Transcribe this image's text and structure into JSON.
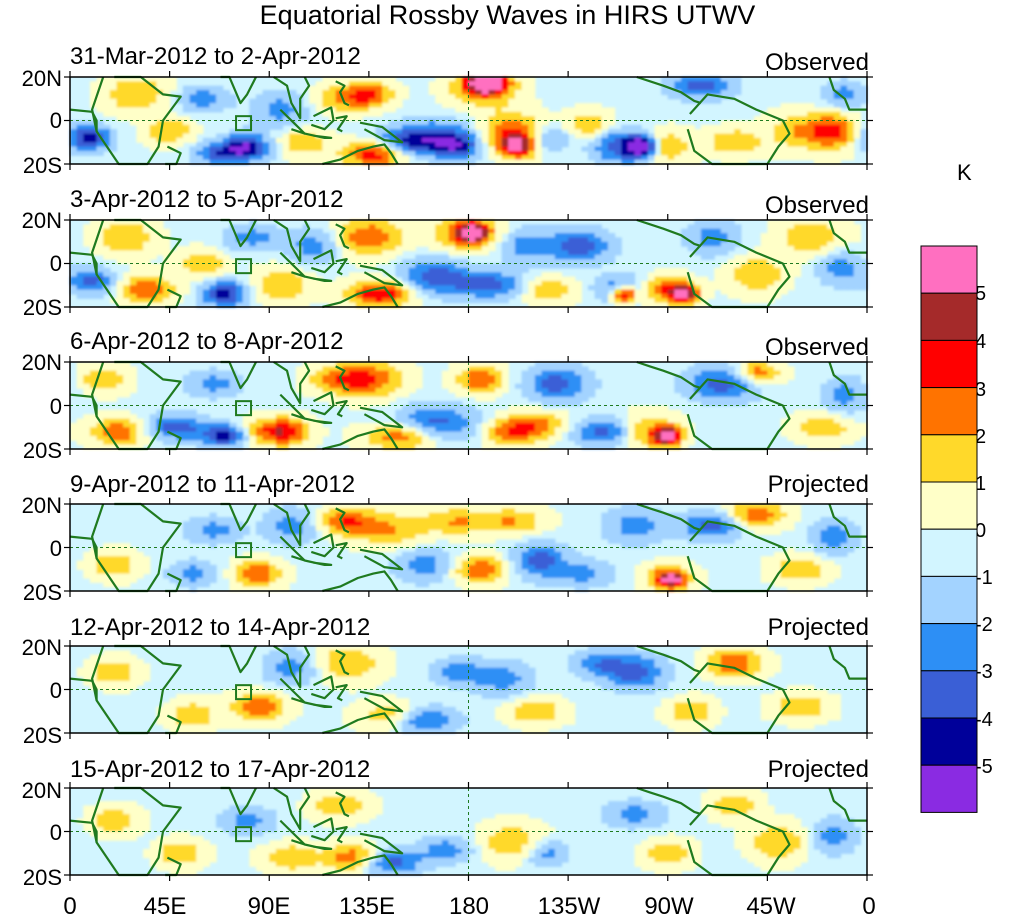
{
  "title": "Equatorial Rossby Waves in HIRS UTWV",
  "panels": [
    {
      "dates": "31-Mar-2012 to 2-Apr-2012",
      "status": "Observed"
    },
    {
      "dates": "3-Apr-2012 to 5-Apr-2012",
      "status": "Observed"
    },
    {
      "dates": "6-Apr-2012 to 8-Apr-2012",
      "status": "Observed"
    },
    {
      "dates": "9-Apr-2012 to 11-Apr-2012",
      "status": "Projected"
    },
    {
      "dates": "12-Apr-2012 to 14-Apr-2012",
      "status": "Projected"
    },
    {
      "dates": "15-Apr-2012 to 17-Apr-2012",
      "status": "Projected"
    }
  ],
  "y_axis_labels": [
    "20N",
    "0",
    "20S"
  ],
  "x_axis_labels": [
    "0",
    "45E",
    "90E",
    "135E",
    "180",
    "135W",
    "90W",
    "45W",
    "0"
  ],
  "colorbar": {
    "units": "K",
    "tick_labels": [
      "5",
      "4",
      "3",
      "2",
      "1",
      "0",
      "-1",
      "-2",
      "-3",
      "-4",
      "-5"
    ],
    "colors": [
      "#ff6fc0",
      "#a52a2a",
      "#ff0000",
      "#ff7300",
      "#ffd92a",
      "#ffffc8",
      "#d2f5ff",
      "#a3d3ff",
      "#2d8ff5",
      "#3a5fd6",
      "#00009a",
      "#8a2be2"
    ]
  },
  "colors": {
    "coastline": "#1f7a1f",
    "frame": "#000000"
  }
}
